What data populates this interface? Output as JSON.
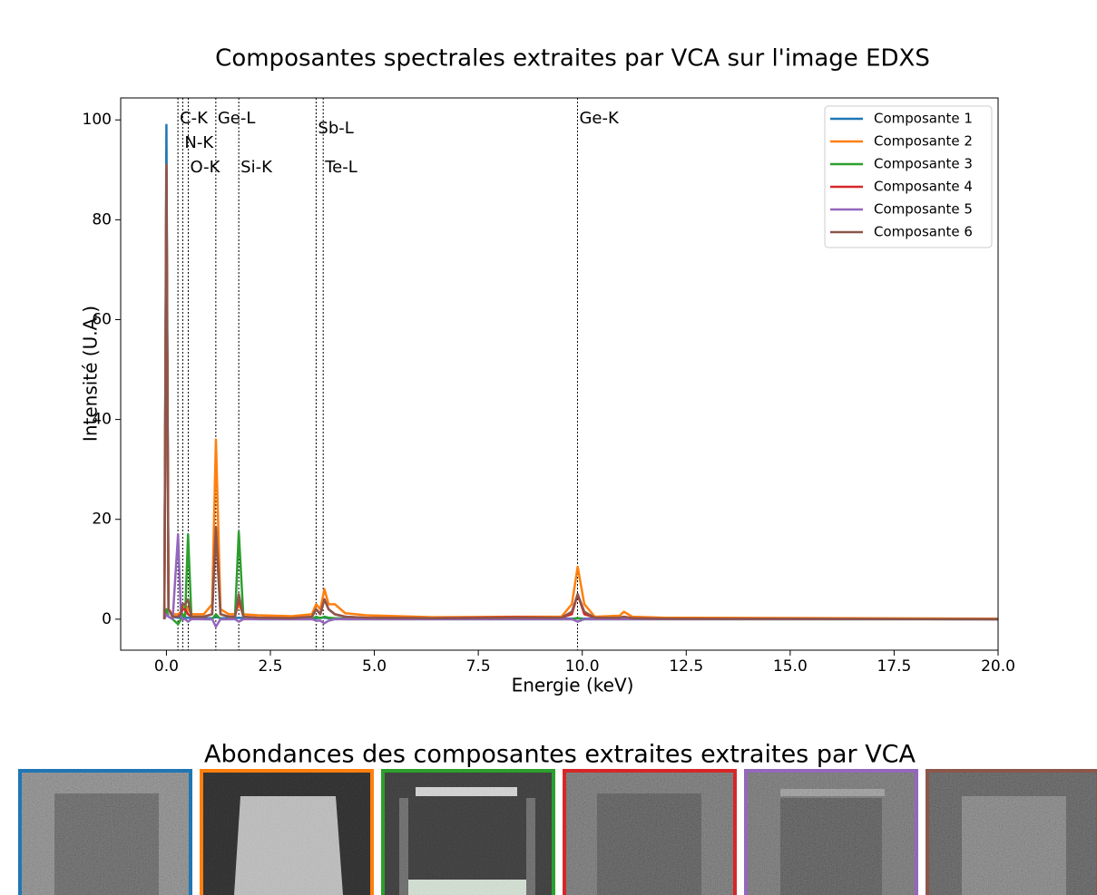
{
  "chart_data": {
    "type": "line",
    "title": "Composantes spectrales extraites par VCA sur l'image EDXS",
    "x_label": "Energie (keV)",
    "y_label": "Intensité (U.A.)",
    "xlim": [
      -1.1,
      20
    ],
    "ylim": [
      -6.2,
      104.4
    ],
    "xticks": [
      {
        "value": 0,
        "label": "0.0"
      },
      {
        "value": 2.5,
        "label": "2.5"
      },
      {
        "value": 5,
        "label": "5.0"
      },
      {
        "value": 7.5,
        "label": "7.5"
      },
      {
        "value": 10,
        "label": "10.0"
      },
      {
        "value": 12.5,
        "label": "12.5"
      },
      {
        "value": 15,
        "label": "15.0"
      },
      {
        "value": 17.5,
        "label": "17.5"
      },
      {
        "value": 20,
        "label": "20.0"
      }
    ],
    "yticks": [
      0,
      20,
      40,
      60,
      80,
      100
    ],
    "grid": false,
    "legend": "upper right",
    "annotations": [
      {
        "label": "C-K",
        "x": 0.277
      },
      {
        "label": "N-K",
        "x": 0.392
      },
      {
        "label": "O-K",
        "x": 0.525
      },
      {
        "label": "Ge-L",
        "x": 1.188
      },
      {
        "label": "Si-K",
        "x": 1.74
      },
      {
        "label": "Sb-L",
        "x": 3.6
      },
      {
        "label": "Te-L",
        "x": 3.77
      },
      {
        "label": "Ge-K",
        "x": 9.886
      }
    ],
    "x": [
      -0.05,
      0,
      0.05,
      0.15,
      0.28,
      0.35,
      0.39,
      0.45,
      0.52,
      0.6,
      0.9,
      1.1,
      1.19,
      1.3,
      1.5,
      1.65,
      1.74,
      1.85,
      2.2,
      3.0,
      3.5,
      3.6,
      3.7,
      3.8,
      3.9,
      4.05,
      4.3,
      4.8,
      6.4,
      8.4,
      9.5,
      9.75,
      9.89,
      10.05,
      10.3,
      10.9,
      11.0,
      11.2,
      12,
      20
    ],
    "series": [
      {
        "name": "Composante 1",
        "color": "#1f77b4",
        "values": [
          0,
          99,
          2,
          0.5,
          0.3,
          0.3,
          0.3,
          0.3,
          0.3,
          0.2,
          0.2,
          0.2,
          0.5,
          0.2,
          0.2,
          0.2,
          0.3,
          0.2,
          0.1,
          0.1,
          0.1,
          0.2,
          0.3,
          0.3,
          0.2,
          0.2,
          0.1,
          0.1,
          0.1,
          0.1,
          0.1,
          0.1,
          0.2,
          0.1,
          0.1,
          0.1,
          0.1,
          0.1,
          0.1,
          0
        ]
      },
      {
        "name": "Composante 2",
        "color": "#ff7f0e",
        "values": [
          0,
          91,
          2,
          1,
          1,
          1.5,
          2,
          3,
          2,
          1,
          1,
          3,
          36,
          2,
          1,
          1,
          3,
          1,
          0.8,
          0.6,
          1,
          3,
          2,
          6,
          3,
          3,
          1.2,
          0.8,
          0.4,
          0.5,
          0.5,
          3,
          10.5,
          3,
          0.5,
          0.7,
          1.5,
          0.5,
          0.3,
          0.1
        ]
      },
      {
        "name": "Composante 3",
        "color": "#2ca02c",
        "values": [
          0,
          2,
          0.5,
          0,
          -1,
          0,
          1,
          0.5,
          17,
          0.5,
          0,
          0,
          1,
          0,
          0,
          0.5,
          17.5,
          0.5,
          0,
          0,
          0,
          0.5,
          0.2,
          0.5,
          0.3,
          0.2,
          0,
          0,
          0,
          0,
          0,
          0,
          0.2,
          0,
          0,
          0,
          0,
          0,
          0,
          0
        ]
      },
      {
        "name": "Composante 4",
        "color": "#d62728",
        "values": [
          0,
          90,
          2,
          0.5,
          0.5,
          1,
          2,
          2,
          1,
          0.5,
          0.5,
          1,
          18,
          1,
          0.5,
          0.5,
          4,
          0.5,
          0.3,
          0.2,
          0.5,
          2,
          1,
          4,
          2,
          1,
          0.5,
          0.3,
          0.2,
          0.4,
          0.3,
          1,
          5,
          1,
          0.3,
          0.3,
          0.5,
          0.2,
          0.1,
          0
        ]
      },
      {
        "name": "Composante 5",
        "color": "#9467bd",
        "values": [
          0,
          1,
          0.5,
          0,
          17,
          0.5,
          0,
          0,
          -0.5,
          0,
          0,
          0,
          -1.5,
          0,
          0,
          0,
          -0.5,
          0,
          0,
          0,
          0,
          -0.3,
          -0.3,
          -0.8,
          -0.3,
          0,
          0,
          0,
          0,
          0,
          0,
          0,
          -0.5,
          0,
          0,
          0,
          0,
          0,
          0,
          0
        ]
      },
      {
        "name": "Composante 6",
        "color": "#8c564b",
        "values": [
          0,
          91,
          2,
          0.5,
          0.5,
          1,
          3,
          3,
          4,
          0.5,
          0.5,
          1,
          18.5,
          1,
          0.5,
          0.5,
          5,
          0.5,
          0.3,
          0.2,
          0.5,
          2,
          1,
          4,
          2,
          1,
          0.5,
          0.3,
          0.2,
          0.3,
          0.3,
          1.5,
          5,
          1.5,
          0.3,
          0.3,
          0.5,
          0.2,
          0.1,
          0
        ]
      }
    ],
    "subtitle": "Abondances des composantes extraites extraites par VCA"
  }
}
